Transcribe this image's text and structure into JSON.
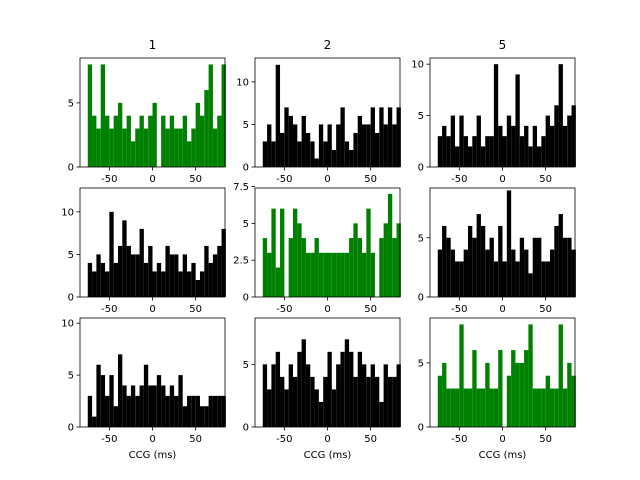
{
  "figure": {
    "column_titles": [
      "1",
      "2",
      "5"
    ],
    "xlabel": "CCG (ms)"
  },
  "chart_data": [
    {
      "type": "bar",
      "row": 0,
      "col": 0,
      "color": "#008000",
      "xlim": [
        -84,
        84
      ],
      "ylim": [
        0,
        8.5
      ],
      "xticks": [
        -50,
        0,
        50
      ],
      "yticks": [
        0,
        5
      ],
      "title": "1",
      "xlabel": "",
      "bin_start": -75,
      "bin_width": 5,
      "values": [
        8,
        4,
        3,
        8,
        4,
        3,
        4,
        5,
        3,
        4,
        2,
        3,
        4,
        3,
        4,
        5,
        0,
        4,
        3,
        4,
        3,
        3,
        4,
        2,
        3,
        5,
        4,
        6,
        8,
        3,
        4,
        8
      ]
    },
    {
      "type": "bar",
      "row": 0,
      "col": 1,
      "color": "#000000",
      "xlim": [
        -84,
        84
      ],
      "ylim": [
        0,
        12.8
      ],
      "xticks": [
        -50,
        0,
        50
      ],
      "yticks": [
        0,
        5,
        10
      ],
      "title": "2",
      "xlabel": "",
      "bin_start": -75,
      "bin_width": 5,
      "values": [
        3,
        5,
        3,
        12,
        4,
        7,
        6,
        5,
        3,
        6,
        4,
        3,
        1,
        5,
        3,
        5,
        2,
        5,
        7,
        3,
        2,
        4,
        6,
        5,
        5,
        7,
        4,
        7,
        5,
        7,
        5,
        7
      ]
    },
    {
      "type": "bar",
      "row": 0,
      "col": 2,
      "color": "#000000",
      "xlim": [
        -84,
        84
      ],
      "ylim": [
        0,
        10.6
      ],
      "xticks": [
        -50,
        0,
        50
      ],
      "yticks": [
        0,
        5,
        10
      ],
      "title": "5",
      "xlabel": "",
      "bin_start": -75,
      "bin_width": 5,
      "values": [
        3,
        4,
        3,
        5,
        2,
        5,
        3,
        2,
        3,
        5,
        2,
        3,
        3,
        10,
        4,
        3,
        5,
        4,
        9,
        3,
        4,
        2,
        4,
        2,
        3,
        5,
        4,
        6,
        10,
        4,
        5,
        6
      ]
    },
    {
      "type": "bar",
      "row": 1,
      "col": 0,
      "color": "#000000",
      "xlim": [
        -84,
        84
      ],
      "ylim": [
        0,
        12.8
      ],
      "xticks": [
        -50,
        0,
        50
      ],
      "yticks": [
        0,
        5,
        10
      ],
      "title": "",
      "xlabel": "",
      "bin_start": -75,
      "bin_width": 5,
      "values": [
        4,
        3,
        5,
        4,
        3,
        10,
        4,
        6,
        9,
        6,
        5,
        5,
        8,
        4,
        6,
        3,
        4,
        3,
        6,
        5,
        5,
        3,
        5,
        3,
        4,
        2,
        3,
        6,
        4,
        5,
        6,
        8
      ]
    },
    {
      "type": "bar",
      "row": 1,
      "col": 1,
      "color": "#008000",
      "xlim": [
        -84,
        84
      ],
      "ylim": [
        0,
        7.4
      ],
      "xticks": [
        -50,
        0,
        50
      ],
      "yticks": [
        0,
        2.5,
        5,
        7.5
      ],
      "title": "",
      "xlabel": "",
      "bin_start": -75,
      "bin_width": 5,
      "values": [
        4,
        3,
        6,
        2,
        6,
        0,
        4,
        6,
        5,
        4,
        3,
        3,
        4,
        3,
        3,
        3,
        3,
        3,
        3,
        3,
        4,
        5,
        4,
        3,
        6,
        3,
        0,
        4,
        5,
        7,
        4,
        5
      ]
    },
    {
      "type": "bar",
      "row": 1,
      "col": 2,
      "color": "#000000",
      "xlim": [
        -84,
        84
      ],
      "ylim": [
        0,
        9.2
      ],
      "xticks": [
        -50,
        0,
        50
      ],
      "yticks": [
        0,
        5
      ],
      "title": "",
      "xlabel": "",
      "bin_start": -75,
      "bin_width": 5,
      "values": [
        4,
        6,
        5,
        4,
        3,
        3,
        4,
        6,
        5,
        7,
        6,
        4,
        5,
        3,
        6,
        3,
        9,
        4,
        3,
        5,
        4,
        2,
        5,
        5,
        3,
        3,
        4,
        6,
        7,
        5,
        5,
        4
      ]
    },
    {
      "type": "bar",
      "row": 2,
      "col": 0,
      "color": "#000000",
      "xlim": [
        -84,
        84
      ],
      "ylim": [
        0,
        10.5
      ],
      "xticks": [
        -50,
        0,
        50
      ],
      "yticks": [
        0,
        5,
        10
      ],
      "title": "",
      "xlabel": "CCG (ms)",
      "bin_start": -75,
      "bin_width": 5,
      "values": [
        3,
        1,
        6,
        5,
        3,
        5,
        2,
        7,
        4,
        3,
        4,
        3,
        4,
        6,
        4,
        4,
        5,
        4,
        3,
        4,
        3,
        5,
        2,
        3,
        3,
        3,
        2,
        2,
        3,
        3,
        3,
        3
      ]
    },
    {
      "type": "bar",
      "row": 2,
      "col": 1,
      "color": "#000000",
      "xlim": [
        -84,
        84
      ],
      "ylim": [
        0,
        8.7
      ],
      "xticks": [
        -50,
        0,
        50
      ],
      "yticks": [
        0,
        5
      ],
      "title": "",
      "xlabel": "CCG (ms)",
      "bin_start": -75,
      "bin_width": 5,
      "values": [
        5,
        3,
        5,
        6,
        4,
        3,
        5,
        4,
        6,
        7,
        5,
        4,
        3,
        2,
        4,
        6,
        3,
        5,
        6,
        7,
        6,
        4,
        6,
        5,
        4,
        5,
        4,
        2,
        5,
        4,
        4,
        5
      ]
    },
    {
      "type": "bar",
      "row": 2,
      "col": 2,
      "color": "#008000",
      "xlim": [
        -84,
        84
      ],
      "ylim": [
        0,
        8.5
      ],
      "xticks": [
        -50,
        0,
        50
      ],
      "yticks": [
        0,
        5
      ],
      "title": "",
      "xlabel": "CCG (ms)",
      "bin_start": -75,
      "bin_width": 5,
      "values": [
        4,
        5,
        3,
        3,
        3,
        8,
        3,
        3,
        6,
        3,
        3,
        5,
        3,
        3,
        6,
        0,
        4,
        6,
        5,
        5,
        6,
        8,
        3,
        3,
        3,
        4,
        3,
        3,
        8,
        3,
        5,
        4
      ]
    }
  ]
}
